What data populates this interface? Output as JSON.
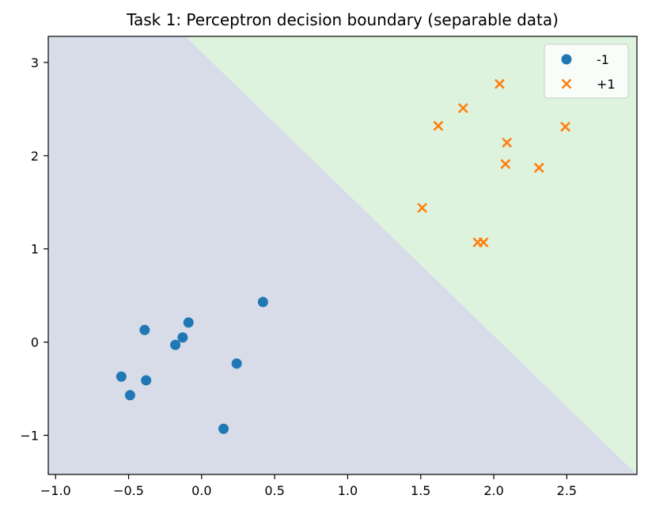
{
  "chart_data": {
    "type": "scatter",
    "title": "Task 1: Perceptron decision boundary (separable data)",
    "xlabel": "",
    "ylabel": "",
    "xlim": [
      -1.05,
      2.98
    ],
    "ylim": [
      -1.42,
      3.28
    ],
    "x_ticks": [
      -1.0,
      -0.5,
      0.0,
      0.5,
      1.0,
      1.5,
      2.0,
      2.5
    ],
    "x_tick_labels": [
      "−1.0",
      "−0.5",
      "0.0",
      "0.5",
      "1.0",
      "1.5",
      "2.0",
      "2.5"
    ],
    "y_ticks": [
      -1,
      0,
      1,
      2,
      3
    ],
    "y_tick_labels": [
      "−1",
      "0",
      "1",
      "2",
      "3"
    ],
    "grid": false,
    "legend": "top-right",
    "decision_boundary": {
      "x_top": -0.11,
      "x_bottom": 2.98,
      "y_top": 3.28,
      "y_bottom": -1.42
    },
    "regions": [
      {
        "side": "negative",
        "color": "#d8dce8"
      },
      {
        "side": "positive",
        "color": "#ddf3de"
      }
    ],
    "series": [
      {
        "name": "-1",
        "marker": "circle",
        "color": "#1f77b4",
        "points": [
          [
            -0.55,
            -0.37
          ],
          [
            -0.49,
            -0.57
          ],
          [
            -0.39,
            0.13
          ],
          [
            -0.38,
            -0.41
          ],
          [
            -0.18,
            -0.03
          ],
          [
            -0.13,
            0.05
          ],
          [
            -0.09,
            0.21
          ],
          [
            0.15,
            -0.93
          ],
          [
            0.24,
            -0.23
          ],
          [
            0.42,
            0.43
          ]
        ]
      },
      {
        "name": "+1",
        "marker": "x",
        "color": "#ff7f0e",
        "points": [
          [
            1.51,
            1.44
          ],
          [
            1.62,
            2.32
          ],
          [
            1.79,
            2.51
          ],
          [
            1.89,
            1.07
          ],
          [
            1.93,
            1.07
          ],
          [
            2.04,
            2.77
          ],
          [
            2.08,
            1.91
          ],
          [
            2.09,
            2.14
          ],
          [
            2.31,
            1.87
          ],
          [
            2.49,
            2.31
          ]
        ]
      }
    ]
  }
}
